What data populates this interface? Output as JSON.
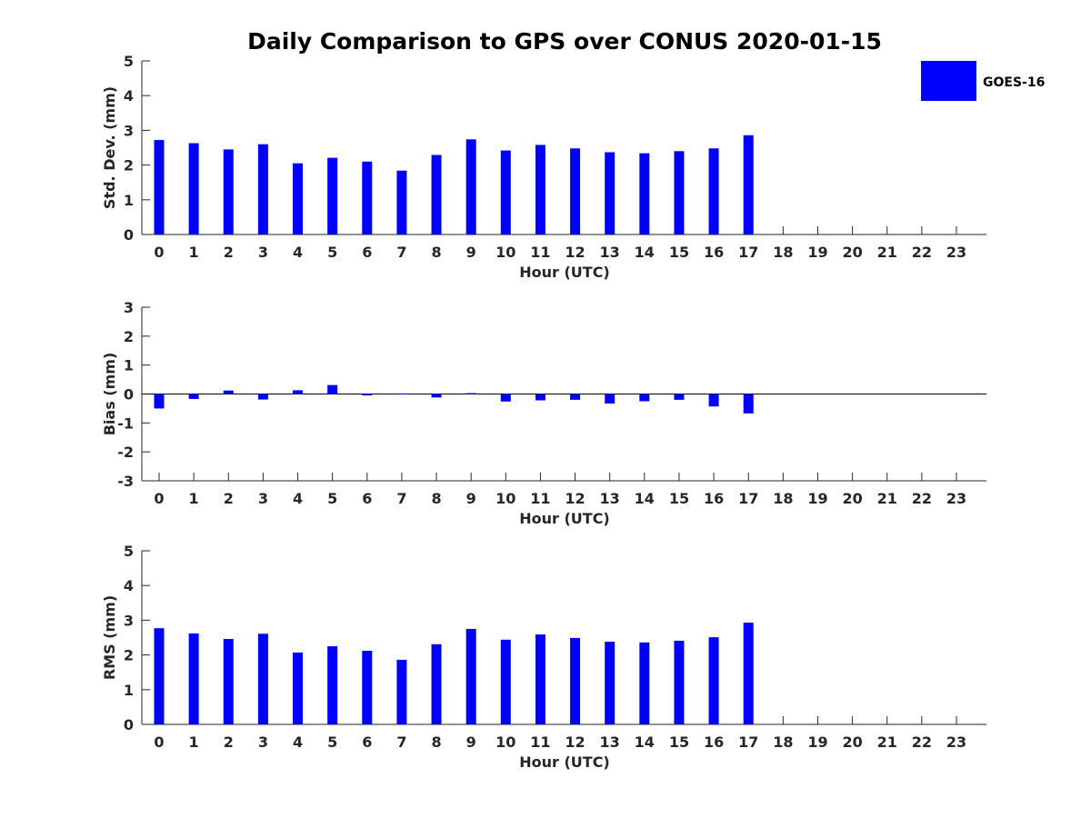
{
  "chart_data": {
    "type": "bar",
    "title": "Daily Comparison to GPS over CONUS 2020-01-15",
    "legend": {
      "entries": [
        "GOES-16"
      ],
      "placement": "top-right"
    },
    "colors": {
      "bar": "#0000FF",
      "axis": "#262626"
    },
    "panels": [
      {
        "name": "std-dev",
        "xlabel": "Hour (UTC)",
        "ylabel": "Std. Dev. (mm)",
        "ylim": [
          0,
          5
        ],
        "yticks": [
          "0",
          "1",
          "2",
          "3",
          "4",
          "5"
        ],
        "zero_line": false,
        "categories": [
          "0",
          "1",
          "2",
          "3",
          "4",
          "5",
          "6",
          "7",
          "8",
          "9",
          "10",
          "11",
          "12",
          "13",
          "14",
          "15",
          "16",
          "17",
          "18",
          "19",
          "20",
          "21",
          "22",
          "23"
        ],
        "series": [
          {
            "name": "GOES-16",
            "values": [
              2.72,
              2.63,
              2.45,
              2.6,
              2.05,
              2.21,
              2.1,
              1.84,
              2.29,
              2.74,
              2.42,
              2.58,
              2.48,
              2.37,
              2.34,
              2.4,
              2.48,
              2.86,
              null,
              null,
              null,
              null,
              null,
              null
            ]
          }
        ]
      },
      {
        "name": "bias",
        "xlabel": "Hour (UTC)",
        "ylabel": "Bias (mm)",
        "ylim": [
          -3,
          3
        ],
        "yticks": [
          "-3",
          "-2",
          "-1",
          "0",
          "1",
          "2",
          "3"
        ],
        "zero_line": true,
        "categories": [
          "0",
          "1",
          "2",
          "3",
          "4",
          "5",
          "6",
          "7",
          "8",
          "9",
          "10",
          "11",
          "12",
          "13",
          "14",
          "15",
          "16",
          "17",
          "18",
          "19",
          "20",
          "21",
          "22",
          "23"
        ],
        "series": [
          {
            "name": "GOES-16",
            "values": [
              -0.5,
              -0.17,
              0.12,
              -0.19,
              0.13,
              0.31,
              -0.05,
              0.02,
              -0.12,
              0.03,
              -0.26,
              -0.22,
              -0.2,
              -0.33,
              -0.25,
              -0.2,
              -0.43,
              -0.67,
              null,
              null,
              null,
              null,
              null,
              null
            ]
          }
        ]
      },
      {
        "name": "rms",
        "xlabel": "Hour (UTC)",
        "ylabel": "RMS (mm)",
        "ylim": [
          0,
          5
        ],
        "yticks": [
          "0",
          "1",
          "2",
          "3",
          "4",
          "5"
        ],
        "zero_line": false,
        "categories": [
          "0",
          "1",
          "2",
          "3",
          "4",
          "5",
          "6",
          "7",
          "8",
          "9",
          "10",
          "11",
          "12",
          "13",
          "14",
          "15",
          "16",
          "17",
          "18",
          "19",
          "20",
          "21",
          "22",
          "23"
        ],
        "series": [
          {
            "name": "GOES-16",
            "values": [
              2.77,
              2.62,
              2.46,
              2.61,
              2.07,
              2.25,
              2.12,
              1.86,
              2.31,
              2.75,
              2.44,
              2.59,
              2.49,
              2.38,
              2.36,
              2.41,
              2.51,
              2.93,
              null,
              null,
              null,
              null,
              null,
              null
            ]
          }
        ]
      }
    ]
  }
}
